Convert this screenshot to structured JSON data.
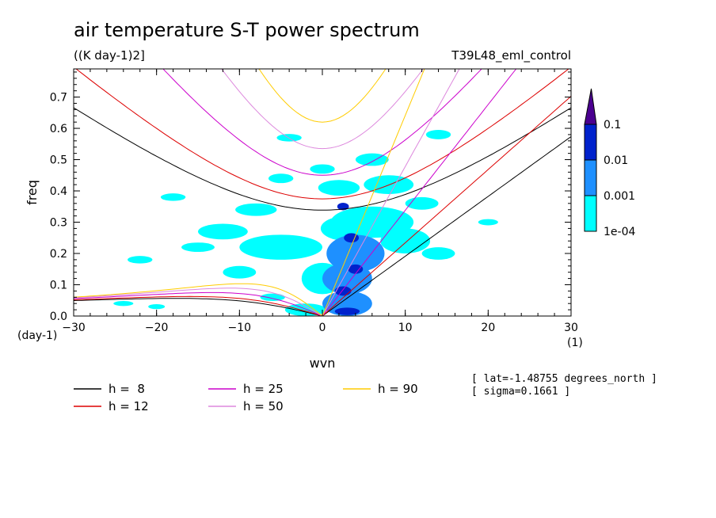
{
  "chart_data": {
    "type": "heatmap",
    "title": "air temperature S-T power spectrum",
    "units": "((K day-1)2]",
    "run_label": "T39L48_eml_control",
    "xlabel": "wvn",
    "ylabel": "freq",
    "x_units": "(1)",
    "y_units": "(day-1)",
    "xlim": [
      -30,
      30
    ],
    "ylim": [
      0,
      0.79
    ],
    "x_ticks": [
      "-30",
      "-20",
      "-10",
      "0",
      "10",
      "20",
      "30"
    ],
    "y_ticks": [
      "0.0",
      "0.1",
      "0.2",
      "0.3",
      "0.4",
      "0.5",
      "0.6",
      "0.7"
    ],
    "colorbar": {
      "levels": [
        "1e-04",
        "0.001",
        "0.01",
        "0.1"
      ],
      "colors": [
        "#00ffff",
        "#1e90ff",
        "#0022cc",
        "#4b0090"
      ]
    },
    "dispersion_curves": [
      {
        "label": "h =  8",
        "h": 8,
        "color": "#000000"
      },
      {
        "label": "h = 12",
        "h": 12,
        "color": "#dd0000"
      },
      {
        "label": "h = 25",
        "h": 25,
        "color": "#cc00cc"
      },
      {
        "label": "h = 50",
        "h": 50,
        "color": "#dd88dd"
      },
      {
        "label": "h = 90",
        "h": 90,
        "color": "#ffcc00"
      }
    ],
    "info_lines": [
      "[ lat=-1.48755 degrees_north ]",
      "[ sigma=0.1661 ]"
    ],
    "contour_blobs": [
      {
        "x": 3,
        "y": 0.04,
        "rx": 3.0,
        "ry": 0.04,
        "level": 1
      },
      {
        "x": 3,
        "y": 0.12,
        "rx": 3.0,
        "ry": 0.05,
        "level": 1
      },
      {
        "x": 4,
        "y": 0.2,
        "rx": 3.5,
        "ry": 0.06,
        "level": 1
      },
      {
        "x": 3,
        "y": 0.28,
        "rx": 3.2,
        "ry": 0.04,
        "level": 0
      },
      {
        "x": 3,
        "y": 0.015,
        "rx": 1.5,
        "ry": 0.012,
        "level": 2
      },
      {
        "x": 2.5,
        "y": 0.08,
        "rx": 1.0,
        "ry": 0.015,
        "level": 2
      },
      {
        "x": 4,
        "y": 0.15,
        "rx": 0.9,
        "ry": 0.015,
        "level": 2
      },
      {
        "x": 3.5,
        "y": 0.25,
        "rx": 0.9,
        "ry": 0.015,
        "level": 2
      },
      {
        "x": 2.5,
        "y": 0.35,
        "rx": 0.7,
        "ry": 0.012,
        "level": 2
      },
      {
        "x": -2,
        "y": 0.02,
        "rx": 2.5,
        "ry": 0.02,
        "level": 0
      },
      {
        "x": 0,
        "y": 0.12,
        "rx": 2.5,
        "ry": 0.05,
        "level": 0
      },
      {
        "x": -5,
        "y": 0.22,
        "rx": 5.0,
        "ry": 0.04,
        "level": 0
      },
      {
        "x": 6,
        "y": 0.3,
        "rx": 5.0,
        "ry": 0.05,
        "level": 0
      },
      {
        "x": 8,
        "y": 0.42,
        "rx": 3.0,
        "ry": 0.03,
        "level": 0
      },
      {
        "x": 2,
        "y": 0.41,
        "rx": 2.5,
        "ry": 0.025,
        "level": 0
      },
      {
        "x": -12,
        "y": 0.27,
        "rx": 3.0,
        "ry": 0.025,
        "level": 0
      },
      {
        "x": -15,
        "y": 0.22,
        "rx": 2.0,
        "ry": 0.015,
        "level": 0
      },
      {
        "x": -8,
        "y": 0.34,
        "rx": 2.5,
        "ry": 0.02,
        "level": 0
      },
      {
        "x": -10,
        "y": 0.14,
        "rx": 2.0,
        "ry": 0.02,
        "level": 0
      },
      {
        "x": 10,
        "y": 0.24,
        "rx": 3.0,
        "ry": 0.04,
        "level": 0
      },
      {
        "x": 14,
        "y": 0.2,
        "rx": 2.0,
        "ry": 0.02,
        "level": 0
      },
      {
        "x": 12,
        "y": 0.36,
        "rx": 2.0,
        "ry": 0.02,
        "level": 0
      },
      {
        "x": 6,
        "y": 0.5,
        "rx": 2.0,
        "ry": 0.02,
        "level": 0
      },
      {
        "x": 0,
        "y": 0.47,
        "rx": 1.5,
        "ry": 0.015,
        "level": 0
      },
      {
        "x": -4,
        "y": 0.57,
        "rx": 1.5,
        "ry": 0.012,
        "level": 0
      },
      {
        "x": 14,
        "y": 0.58,
        "rx": 1.5,
        "ry": 0.015,
        "level": 0
      },
      {
        "x": -22,
        "y": 0.18,
        "rx": 1.5,
        "ry": 0.012,
        "level": 0
      },
      {
        "x": -20,
        "y": 0.03,
        "rx": 1.0,
        "ry": 0.008,
        "level": 0
      },
      {
        "x": -18,
        "y": 0.38,
        "rx": 1.5,
        "ry": 0.012,
        "level": 0
      },
      {
        "x": 20,
        "y": 0.3,
        "rx": 1.2,
        "ry": 0.01,
        "level": 0
      },
      {
        "x": -5,
        "y": 0.44,
        "rx": 1.5,
        "ry": 0.015,
        "level": 0
      },
      {
        "x": -6,
        "y": 0.06,
        "rx": 1.5,
        "ry": 0.012,
        "level": 0
      },
      {
        "x": -24,
        "y": 0.04,
        "rx": 1.2,
        "ry": 0.008,
        "level": 0
      }
    ]
  },
  "legend": {
    "items": [
      {
        "label": "h =  8",
        "color": "#000000"
      },
      {
        "label": "h = 12",
        "color": "#dd0000"
      },
      {
        "label": "h = 25",
        "color": "#cc00cc"
      },
      {
        "label": "h = 50",
        "color": "#dd88dd"
      },
      {
        "label": "h = 90",
        "color": "#ffcc00"
      }
    ]
  }
}
